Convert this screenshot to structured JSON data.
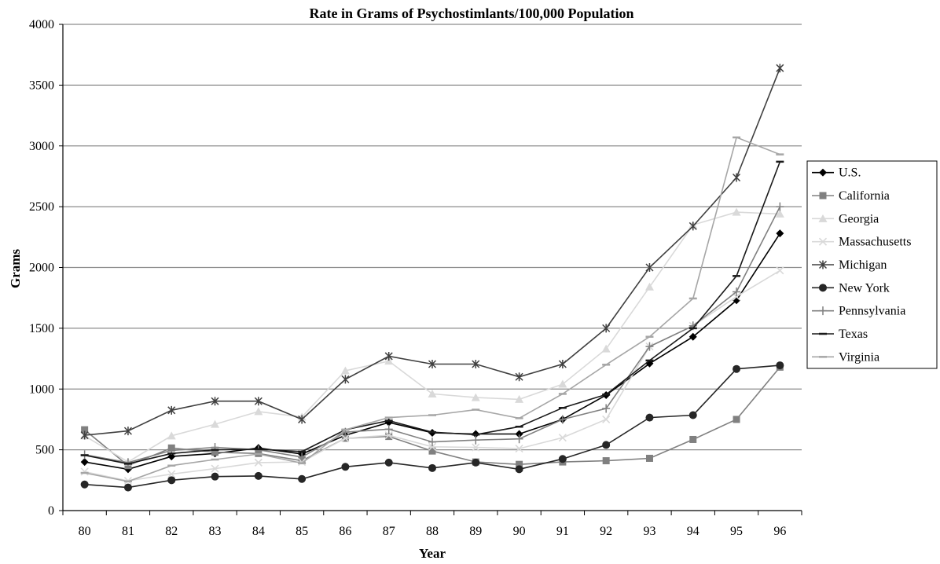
{
  "chart_data": {
    "type": "line",
    "title": "Rate in Grams of Psychostimlants/100,000 Population",
    "xlabel": "Year",
    "ylabel": "Grams",
    "categories": [
      "80",
      "81",
      "82",
      "83",
      "84",
      "85",
      "86",
      "87",
      "88",
      "89",
      "90",
      "91",
      "92",
      "93",
      "94",
      "95",
      "96"
    ],
    "ylim": [
      0,
      4000
    ],
    "yticks": [
      "0",
      "500",
      "1000",
      "1500",
      "2000",
      "2500",
      "3000",
      "3500",
      "4000"
    ],
    "grid": "horizontal",
    "legend": "right",
    "series": [
      {
        "name": "U.S.",
        "marker": "diamond",
        "color": "#000000",
        "values": [
          400,
          340,
          445,
          470,
          515,
          465,
          620,
          725,
          640,
          630,
          630,
          750,
          950,
          1210,
          1430,
          1730,
          2280
        ]
      },
      {
        "name": "California",
        "marker": "square",
        "color": "#808080",
        "values": [
          665,
          370,
          515,
          480,
          470,
          410,
          595,
          610,
          490,
          400,
          380,
          400,
          410,
          430,
          585,
          750,
          1180
        ]
      },
      {
        "name": "Georgia",
        "marker": "triangle",
        "color": "#d9d9d9",
        "values": [
          615,
          400,
          615,
          710,
          815,
          770,
          1150,
          1230,
          960,
          930,
          915,
          1040,
          1330,
          1840,
          2350,
          2455,
          2440
        ]
      },
      {
        "name": "Massachusetts",
        "marker": "x",
        "color": "#d9d9d9",
        "values": [
          320,
          245,
          300,
          345,
          395,
          400,
          595,
          620,
          525,
          520,
          510,
          600,
          750,
          1350,
          1520,
          1760,
          1975
        ]
      },
      {
        "name": "Michigan",
        "marker": "star",
        "color": "#404040",
        "values": [
          620,
          655,
          825,
          900,
          900,
          750,
          1080,
          1270,
          1205,
          1205,
          1100,
          1205,
          1500,
          2000,
          2340,
          2740,
          3640
        ]
      },
      {
        "name": "New York",
        "marker": "circle",
        "color": "#262626",
        "values": [
          215,
          190,
          250,
          280,
          285,
          260,
          360,
          395,
          350,
          395,
          340,
          425,
          540,
          765,
          785,
          1165,
          1195
        ]
      },
      {
        "name": "Pennsylvania",
        "marker": "plus",
        "color": "#808080",
        "values": [
          460,
          395,
          495,
          520,
          500,
          440,
          645,
          670,
          565,
          580,
          590,
          750,
          840,
          1350,
          1520,
          1800,
          2500
        ]
      },
      {
        "name": "Texas",
        "marker": "dash",
        "color": "#1a1a1a",
        "values": [
          455,
          385,
          470,
          500,
          505,
          485,
          665,
          740,
          645,
          625,
          690,
          845,
          955,
          1235,
          1500,
          1930,
          2870
        ]
      },
      {
        "name": "Virginia",
        "marker": "dash",
        "color": "#a6a6a6",
        "values": [
          310,
          240,
          370,
          420,
          465,
          390,
          665,
          765,
          785,
          830,
          760,
          960,
          1200,
          1430,
          1745,
          3070,
          2930
        ]
      }
    ]
  }
}
